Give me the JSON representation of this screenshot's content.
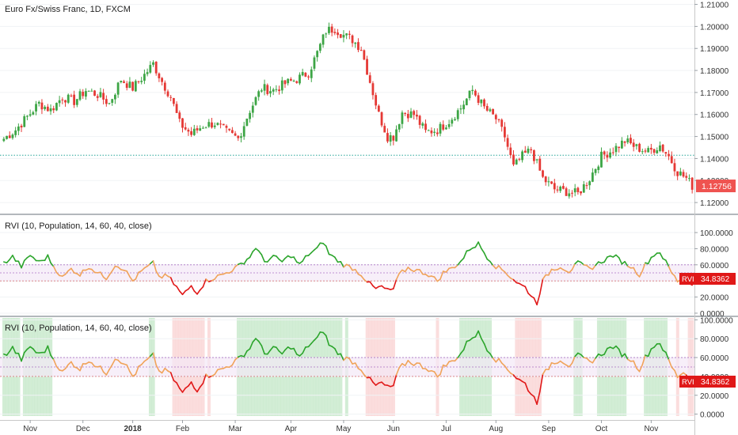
{
  "colors": {
    "up": "#26a69a",
    "up_body": "#3da545",
    "down": "#e53935",
    "rvi_up": "#2ca52c",
    "rvi_mid": "#f0a35a",
    "rvi_down": "#e01818",
    "band_green": "#bfe6c3",
    "band_red": "#f9cfcf",
    "price_tag": "#ef5350"
  },
  "chart_data": [
    {
      "type": "candlestick",
      "title": "Euro Fx/Swiss Franc, 1D, FXCM",
      "ylim": [
        1.115,
        1.212
      ],
      "y_ticks": [
        "1.12000",
        "1.13000",
        "1.14000",
        "1.15000",
        "1.16000",
        "1.17000",
        "1.18000",
        "1.19000",
        "1.20000",
        "1.21000"
      ],
      "last_price": "1.12756",
      "last_price_value": 1.12756,
      "reference_line": 1.1415,
      "x_ticks": [
        "Nov",
        "Dec",
        "2018",
        "Feb",
        "Mar",
        "Apr",
        "May",
        "Jun",
        "Jul",
        "Aug",
        "Sep",
        "Oct",
        "Nov"
      ],
      "x_tick_index": [
        9,
        27,
        44,
        61,
        79,
        98,
        116,
        133,
        151,
        168,
        186,
        204,
        221
      ],
      "x_tick_bold": [
        false,
        false,
        true,
        false,
        false,
        false,
        false,
        false,
        false,
        false,
        false,
        false,
        false
      ],
      "close_path": [
        [
          0,
          1.149
        ],
        [
          4,
          1.153
        ],
        [
          8,
          1.159
        ],
        [
          12,
          1.165
        ],
        [
          16,
          1.162
        ],
        [
          20,
          1.168
        ],
        [
          24,
          1.166
        ],
        [
          28,
          1.171
        ],
        [
          32,
          1.169
        ],
        [
          36,
          1.165
        ],
        [
          40,
          1.176
        ],
        [
          44,
          1.172
        ],
        [
          48,
          1.178
        ],
        [
          51,
          1.183
        ],
        [
          54,
          1.175
        ],
        [
          57,
          1.168
        ],
        [
          60,
          1.156
        ],
        [
          64,
          1.151
        ],
        [
          68,
          1.155
        ],
        [
          72,
          1.156
        ],
        [
          76,
          1.152
        ],
        [
          80,
          1.149
        ],
        [
          84,
          1.162
        ],
        [
          88,
          1.172
        ],
        [
          92,
          1.171
        ],
        [
          96,
          1.174
        ],
        [
          100,
          1.176
        ],
        [
          104,
          1.179
        ],
        [
          107,
          1.188
        ],
        [
          110,
          1.198
        ],
        [
          113,
          1.199
        ],
        [
          116,
          1.196
        ],
        [
          119,
          1.194
        ],
        [
          122,
          1.19
        ],
        [
          125,
          1.175
        ],
        [
          128,
          1.16
        ],
        [
          131,
          1.15
        ],
        [
          133,
          1.15
        ],
        [
          136,
          1.161
        ],
        [
          140,
          1.16
        ],
        [
          144,
          1.152
        ],
        [
          148,
          1.153
        ],
        [
          152,
          1.157
        ],
        [
          156,
          1.163
        ],
        [
          160,
          1.171
        ],
        [
          164,
          1.163
        ],
        [
          168,
          1.158
        ],
        [
          171,
          1.15
        ],
        [
          174,
          1.136
        ],
        [
          177,
          1.141
        ],
        [
          180,
          1.144
        ],
        [
          184,
          1.131
        ],
        [
          188,
          1.126
        ],
        [
          192,
          1.125
        ],
        [
          196,
          1.124
        ],
        [
          200,
          1.131
        ],
        [
          204,
          1.141
        ],
        [
          208,
          1.144
        ],
        [
          212,
          1.148
        ],
        [
          216,
          1.145
        ],
        [
          220,
          1.143
        ],
        [
          224,
          1.146
        ],
        [
          227,
          1.141
        ],
        [
          230,
          1.134
        ],
        [
          233,
          1.131
        ],
        [
          235,
          1.1276
        ]
      ]
    },
    {
      "type": "line",
      "title": "RVI (10, Population, 14, 60, 40, close)",
      "ylim": [
        -2,
        102
      ],
      "y_ticks": [
        "0.0000",
        "20.0000",
        "40.0000",
        "60.0000",
        "80.0000",
        "100.0000"
      ],
      "y_tick_values": [
        0,
        20,
        40,
        60,
        80,
        100
      ],
      "upper": 60,
      "middle": 50,
      "lower": 40,
      "last_label": "RVI",
      "last_value": "34.8362",
      "bands": false
    },
    {
      "type": "line",
      "title": "RVI (10, Population, 14, 60, 40, close)",
      "ylim": [
        -2,
        102
      ],
      "y_ticks": [
        "0.0000",
        "20.0000",
        "40.0000",
        "60.0000",
        "80.0000",
        "100.0000"
      ],
      "y_tick_values": [
        0,
        20,
        40,
        60,
        80,
        100
      ],
      "upper": 60,
      "middle": 50,
      "lower": 40,
      "last_label": "RVI",
      "last_value": "34.8362",
      "bands": true
    }
  ],
  "rvi_path": [
    [
      0,
      62
    ],
    [
      3,
      70
    ],
    [
      6,
      58
    ],
    [
      9,
      72
    ],
    [
      12,
      63
    ],
    [
      15,
      70
    ],
    [
      17,
      58
    ],
    [
      20,
      44
    ],
    [
      23,
      55
    ],
    [
      26,
      48
    ],
    [
      29,
      58
    ],
    [
      32,
      50
    ],
    [
      35,
      44
    ],
    [
      38,
      60
    ],
    [
      41,
      55
    ],
    [
      44,
      40
    ],
    [
      47,
      52
    ],
    [
      51,
      62
    ],
    [
      53,
      45
    ],
    [
      56,
      46
    ],
    [
      59,
      32
    ],
    [
      61,
      22
    ],
    [
      64,
      34
    ],
    [
      66,
      26
    ],
    [
      69,
      40
    ],
    [
      72,
      44
    ],
    [
      76,
      50
    ],
    [
      80,
      58
    ],
    [
      84,
      70
    ],
    [
      86,
      82
    ],
    [
      89,
      64
    ],
    [
      92,
      70
    ],
    [
      95,
      64
    ],
    [
      98,
      72
    ],
    [
      101,
      60
    ],
    [
      104,
      73
    ],
    [
      107,
      80
    ],
    [
      109,
      89
    ],
    [
      111,
      74
    ],
    [
      113,
      68
    ],
    [
      116,
      60
    ],
    [
      119,
      56
    ],
    [
      122,
      48
    ],
    [
      125,
      36
    ],
    [
      127,
      30
    ],
    [
      129,
      33
    ],
    [
      131,
      28
    ],
    [
      133,
      30
    ],
    [
      135,
      48
    ],
    [
      138,
      56
    ],
    [
      142,
      52
    ],
    [
      145,
      48
    ],
    [
      148,
      40
    ],
    [
      150,
      50
    ],
    [
      153,
      56
    ],
    [
      156,
      64
    ],
    [
      159,
      80
    ],
    [
      162,
      86
    ],
    [
      165,
      70
    ],
    [
      168,
      58
    ],
    [
      171,
      52
    ],
    [
      173,
      45
    ],
    [
      176,
      36
    ],
    [
      178,
      32
    ],
    [
      180,
      22
    ],
    [
      182,
      13
    ],
    [
      184,
      40
    ],
    [
      187,
      54
    ],
    [
      190,
      58
    ],
    [
      193,
      52
    ],
    [
      196,
      62
    ],
    [
      200,
      55
    ],
    [
      204,
      64
    ],
    [
      208,
      72
    ],
    [
      211,
      64
    ],
    [
      214,
      58
    ],
    [
      217,
      48
    ],
    [
      219,
      60
    ],
    [
      222,
      73
    ],
    [
      224,
      76
    ],
    [
      226,
      63
    ],
    [
      228,
      50
    ],
    [
      230,
      40
    ],
    [
      232,
      45
    ],
    [
      234,
      38
    ],
    [
      235,
      34.8
    ]
  ]
}
